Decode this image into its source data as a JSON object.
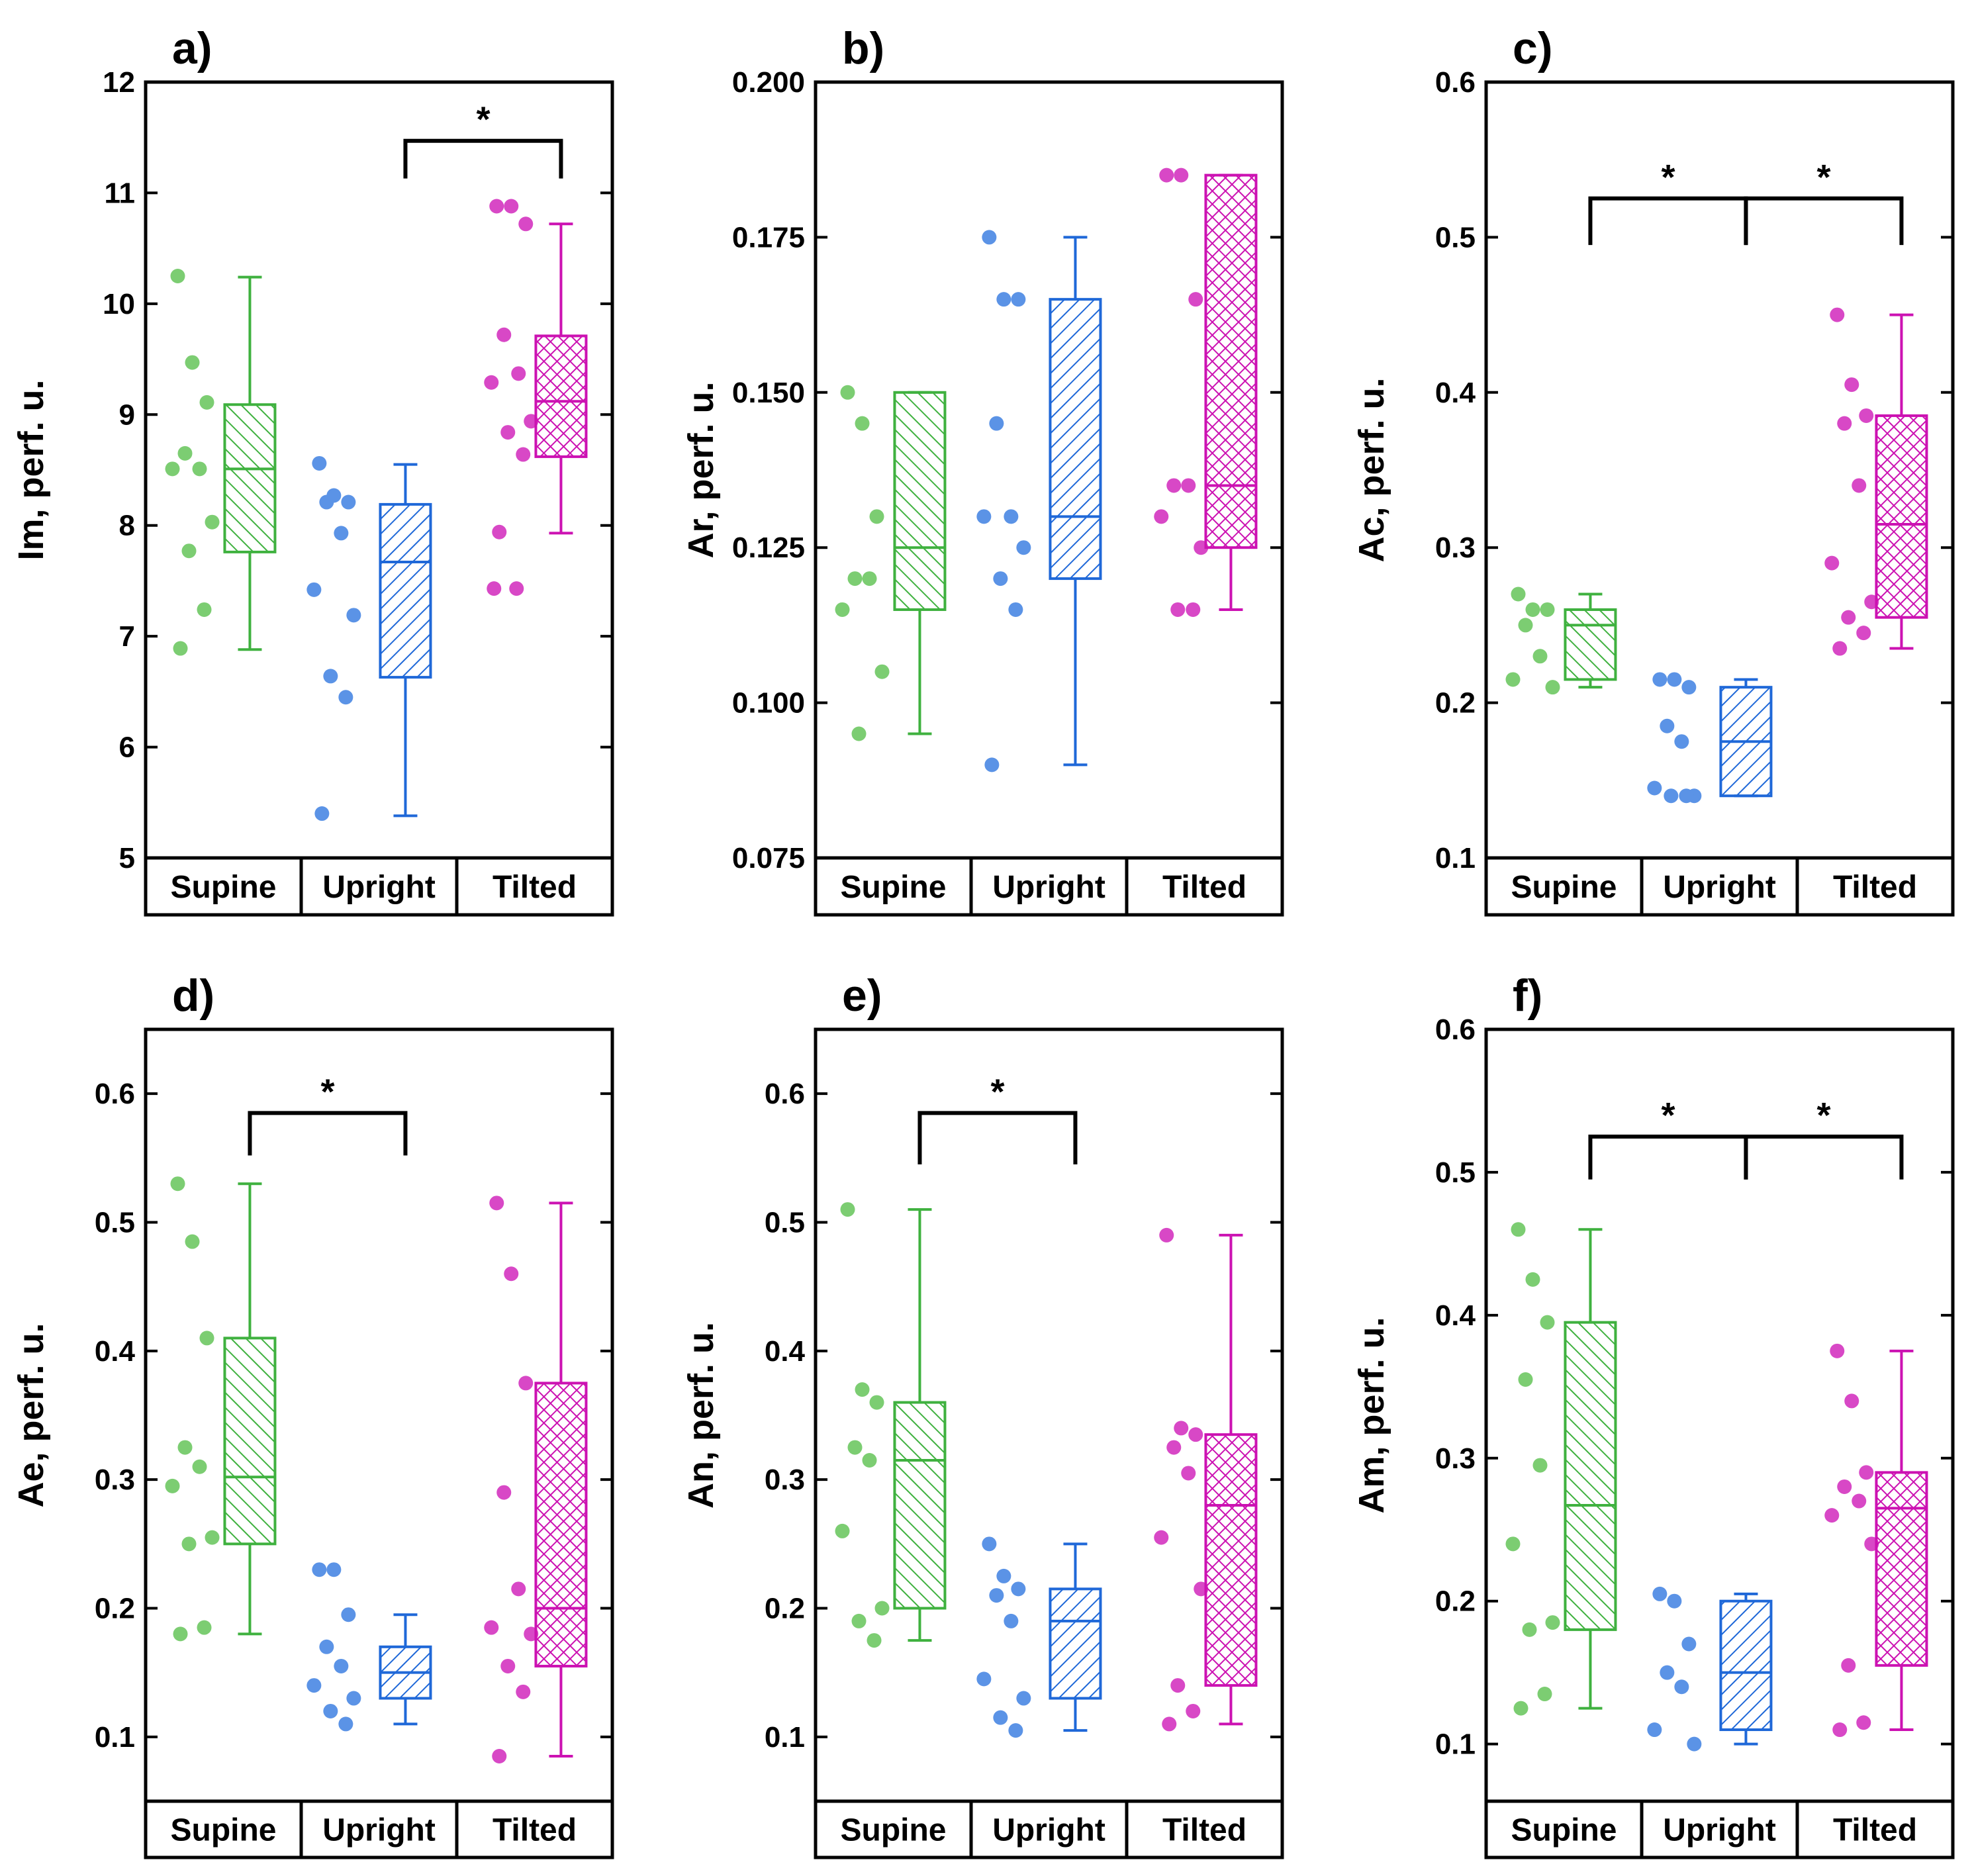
{
  "figure": {
    "categories": [
      "Supine",
      "Upright",
      "Tilted"
    ],
    "colors": {
      "Supine": "#3fb13f",
      "Upright": "#1f68d8",
      "Tilted": "#cc12b2",
      "Supine_light": "#7ccd72",
      "Upright_light": "#5b93e6",
      "Tilted_light": "#d848c6",
      "axis": "#000000"
    }
  },
  "chart_data": [
    {
      "type": "box",
      "panel_label": "a)",
      "ylabel": "Im, perf. u.",
      "ylim": [
        5,
        12
      ],
      "yticks": [
        5,
        6,
        7,
        8,
        9,
        10,
        11,
        12
      ],
      "tick_labels": [
        "5",
        "6",
        "7",
        "8",
        "9",
        "10",
        "11",
        "12"
      ],
      "categories": [
        "Supine",
        "Upright",
        "Tilted"
      ],
      "series": [
        {
          "name": "Supine",
          "box": {
            "whisker_low": 6.88,
            "q1": 7.76,
            "median": 8.51,
            "q3": 9.09,
            "whisker_high": 10.24
          },
          "points": [
            10.25,
            9.47,
            9.11,
            8.65,
            8.51,
            8.51,
            8.03,
            7.77,
            7.24,
            6.89
          ]
        },
        {
          "name": "Upright",
          "box": {
            "whisker_low": 5.38,
            "q1": 6.63,
            "median": 7.67,
            "q3": 8.19,
            "whisker_high": 8.55
          },
          "points": [
            8.56,
            8.27,
            8.21,
            8.21,
            7.93,
            7.42,
            7.19,
            6.64,
            6.45,
            5.4
          ]
        },
        {
          "name": "Tilted",
          "box": {
            "whisker_low": 7.93,
            "q1": 8.62,
            "median": 9.12,
            "q3": 9.71,
            "whisker_high": 10.72
          },
          "points": [
            10.88,
            10.88,
            10.72,
            9.72,
            9.37,
            9.29,
            8.94,
            8.84,
            8.64,
            7.94,
            7.43,
            7.43
          ]
        }
      ],
      "significance": [
        {
          "from": "Upright",
          "to": "Tilted",
          "label": "*",
          "y": 11.47,
          "left_end": 11.13,
          "right_end": 11.13
        }
      ]
    },
    {
      "type": "box",
      "panel_label": "b)",
      "ylabel": "Ar, perf. u.",
      "ylim": [
        0.075,
        0.2
      ],
      "yticks": [
        0.075,
        0.1,
        0.125,
        0.15,
        0.175,
        0.2
      ],
      "tick_labels": [
        "0.075",
        "0.100",
        "0.125",
        "0.150",
        "0.175",
        "0.200"
      ],
      "categories": [
        "Supine",
        "Upright",
        "Tilted"
      ],
      "series": [
        {
          "name": "Supine",
          "box": {
            "whisker_low": 0.095,
            "q1": 0.115,
            "median": 0.125,
            "q3": 0.15,
            "whisker_high": 0.15
          },
          "points": [
            0.15,
            0.145,
            0.13,
            0.12,
            0.12,
            0.115,
            0.105,
            0.095
          ]
        },
        {
          "name": "Upright",
          "box": {
            "whisker_low": 0.09,
            "q1": 0.12,
            "median": 0.13,
            "q3": 0.165,
            "whisker_high": 0.175
          },
          "points": [
            0.175,
            0.165,
            0.165,
            0.145,
            0.13,
            0.13,
            0.125,
            0.12,
            0.115,
            0.09
          ]
        },
        {
          "name": "Tilted",
          "box": {
            "whisker_low": 0.115,
            "q1": 0.125,
            "median": 0.135,
            "q3": 0.185,
            "whisker_high": 0.185
          },
          "points": [
            0.185,
            0.185,
            0.165,
            0.135,
            0.135,
            0.13,
            0.125,
            0.115,
            0.115
          ]
        }
      ],
      "significance": []
    },
    {
      "type": "box",
      "panel_label": "c)",
      "ylabel": "Ac, perf. u.",
      "ylim": [
        0.1,
        0.6
      ],
      "yticks": [
        0.1,
        0.2,
        0.3,
        0.4,
        0.5,
        0.6
      ],
      "tick_labels": [
        "0.1",
        "0.2",
        "0.3",
        "0.4",
        "0.5",
        "0.6"
      ],
      "categories": [
        "Supine",
        "Upright",
        "Tilted"
      ],
      "series": [
        {
          "name": "Supine",
          "box": {
            "whisker_low": 0.21,
            "q1": 0.215,
            "median": 0.25,
            "q3": 0.26,
            "whisker_high": 0.27
          },
          "points": [
            0.27,
            0.26,
            0.26,
            0.25,
            0.23,
            0.215,
            0.21
          ]
        },
        {
          "name": "Upright",
          "box": {
            "whisker_low": 0.14,
            "q1": 0.14,
            "median": 0.175,
            "q3": 0.21,
            "whisker_high": 0.215
          },
          "points": [
            0.215,
            0.215,
            0.21,
            0.185,
            0.175,
            0.145,
            0.14,
            0.14,
            0.14
          ]
        },
        {
          "name": "Tilted",
          "box": {
            "whisker_low": 0.235,
            "q1": 0.255,
            "median": 0.315,
            "q3": 0.385,
            "whisker_high": 0.45
          },
          "points": [
            0.45,
            0.405,
            0.385,
            0.38,
            0.34,
            0.29,
            0.265,
            0.255,
            0.245,
            0.235
          ]
        }
      ],
      "significance": [
        {
          "from": "Supine",
          "to": "Upright",
          "label": "*",
          "y": 0.525,
          "left_end": 0.495,
          "right_end": 0.495
        },
        {
          "from": "Upright",
          "to": "Tilted",
          "label": "*",
          "y": 0.525,
          "left_end": 0.495,
          "right_end": 0.495
        }
      ]
    },
    {
      "type": "box",
      "panel_label": "d)",
      "ylabel": "Ae, perf. u.",
      "ylim": [
        0.05,
        0.65
      ],
      "yticks": [
        0.1,
        0.2,
        0.3,
        0.4,
        0.5,
        0.6
      ],
      "tick_labels": [
        "0.1",
        "0.2",
        "0.3",
        "0.4",
        "0.5",
        "0.6"
      ],
      "categories": [
        "Supine",
        "Upright",
        "Tilted"
      ],
      "series": [
        {
          "name": "Supine",
          "box": {
            "whisker_low": 0.18,
            "q1": 0.25,
            "median": 0.302,
            "q3": 0.41,
            "whisker_high": 0.53
          },
          "points": [
            0.53,
            0.485,
            0.41,
            0.325,
            0.31,
            0.295,
            0.255,
            0.25,
            0.185,
            0.18
          ]
        },
        {
          "name": "Upright",
          "box": {
            "whisker_low": 0.11,
            "q1": 0.13,
            "median": 0.15,
            "q3": 0.17,
            "whisker_high": 0.195
          },
          "points": [
            0.23,
            0.23,
            0.195,
            0.17,
            0.155,
            0.14,
            0.13,
            0.12,
            0.11
          ]
        },
        {
          "name": "Tilted",
          "box": {
            "whisker_low": 0.085,
            "q1": 0.155,
            "median": 0.2,
            "q3": 0.375,
            "whisker_high": 0.515
          },
          "points": [
            0.515,
            0.46,
            0.375,
            0.29,
            0.215,
            0.185,
            0.18,
            0.155,
            0.135,
            0.085
          ]
        }
      ],
      "significance": [
        {
          "from": "Supine",
          "to": "Upright",
          "label": "*",
          "y": 0.585,
          "left_end": 0.552,
          "right_end": 0.552
        }
      ]
    },
    {
      "type": "box",
      "panel_label": "e)",
      "ylabel": "An, perf. u.",
      "ylim": [
        0.05,
        0.65
      ],
      "yticks": [
        0.1,
        0.2,
        0.3,
        0.4,
        0.5,
        0.6
      ],
      "tick_labels": [
        "0.1",
        "0.2",
        "0.3",
        "0.4",
        "0.5",
        "0.6"
      ],
      "categories": [
        "Supine",
        "Upright",
        "Tilted"
      ],
      "series": [
        {
          "name": "Supine",
          "box": {
            "whisker_low": 0.175,
            "q1": 0.2,
            "median": 0.315,
            "q3": 0.36,
            "whisker_high": 0.51
          },
          "points": [
            0.51,
            0.37,
            0.36,
            0.325,
            0.315,
            0.26,
            0.2,
            0.19,
            0.175
          ]
        },
        {
          "name": "Upright",
          "box": {
            "whisker_low": 0.105,
            "q1": 0.13,
            "median": 0.19,
            "q3": 0.215,
            "whisker_high": 0.25
          },
          "points": [
            0.25,
            0.225,
            0.215,
            0.21,
            0.19,
            0.145,
            0.13,
            0.115,
            0.105
          ]
        },
        {
          "name": "Tilted",
          "box": {
            "whisker_low": 0.11,
            "q1": 0.14,
            "median": 0.28,
            "q3": 0.335,
            "whisker_high": 0.49
          },
          "points": [
            0.49,
            0.34,
            0.335,
            0.325,
            0.305,
            0.255,
            0.215,
            0.14,
            0.12,
            0.11
          ]
        }
      ],
      "significance": [
        {
          "from": "Supine",
          "to": "Upright",
          "label": "*",
          "y": 0.585,
          "left_end": 0.545,
          "right_end": 0.545
        }
      ]
    },
    {
      "type": "box",
      "panel_label": "f)",
      "ylabel": "Am, perf. u.",
      "ylim": [
        0.06,
        0.6
      ],
      "yticks": [
        0.1,
        0.2,
        0.3,
        0.4,
        0.5,
        0.6
      ],
      "tick_labels": [
        "0.1",
        "0.2",
        "0.3",
        "0.4",
        "0.5",
        "0.6"
      ],
      "categories": [
        "Supine",
        "Upright",
        "Tilted"
      ],
      "series": [
        {
          "name": "Supine",
          "box": {
            "whisker_low": 0.125,
            "q1": 0.18,
            "median": 0.267,
            "q3": 0.395,
            "whisker_high": 0.46
          },
          "points": [
            0.46,
            0.425,
            0.395,
            0.355,
            0.295,
            0.24,
            0.185,
            0.18,
            0.135,
            0.125
          ]
        },
        {
          "name": "Upright",
          "box": {
            "whisker_low": 0.1,
            "q1": 0.11,
            "median": 0.15,
            "q3": 0.2,
            "whisker_high": 0.205
          },
          "points": [
            0.205,
            0.2,
            0.17,
            0.15,
            0.14,
            0.11,
            0.1
          ]
        },
        {
          "name": "Tilted",
          "box": {
            "whisker_low": 0.11,
            "q1": 0.155,
            "median": 0.265,
            "q3": 0.29,
            "whisker_high": 0.375
          },
          "points": [
            0.375,
            0.34,
            0.29,
            0.28,
            0.27,
            0.26,
            0.24,
            0.155,
            0.115,
            0.11
          ]
        }
      ],
      "significance": [
        {
          "from": "Supine",
          "to": "Upright",
          "label": "*",
          "y": 0.525,
          "left_end": 0.495,
          "right_end": 0.495
        },
        {
          "from": "Upright",
          "to": "Tilted",
          "label": "*",
          "y": 0.525,
          "left_end": 0.495,
          "right_end": 0.495
        }
      ]
    }
  ]
}
